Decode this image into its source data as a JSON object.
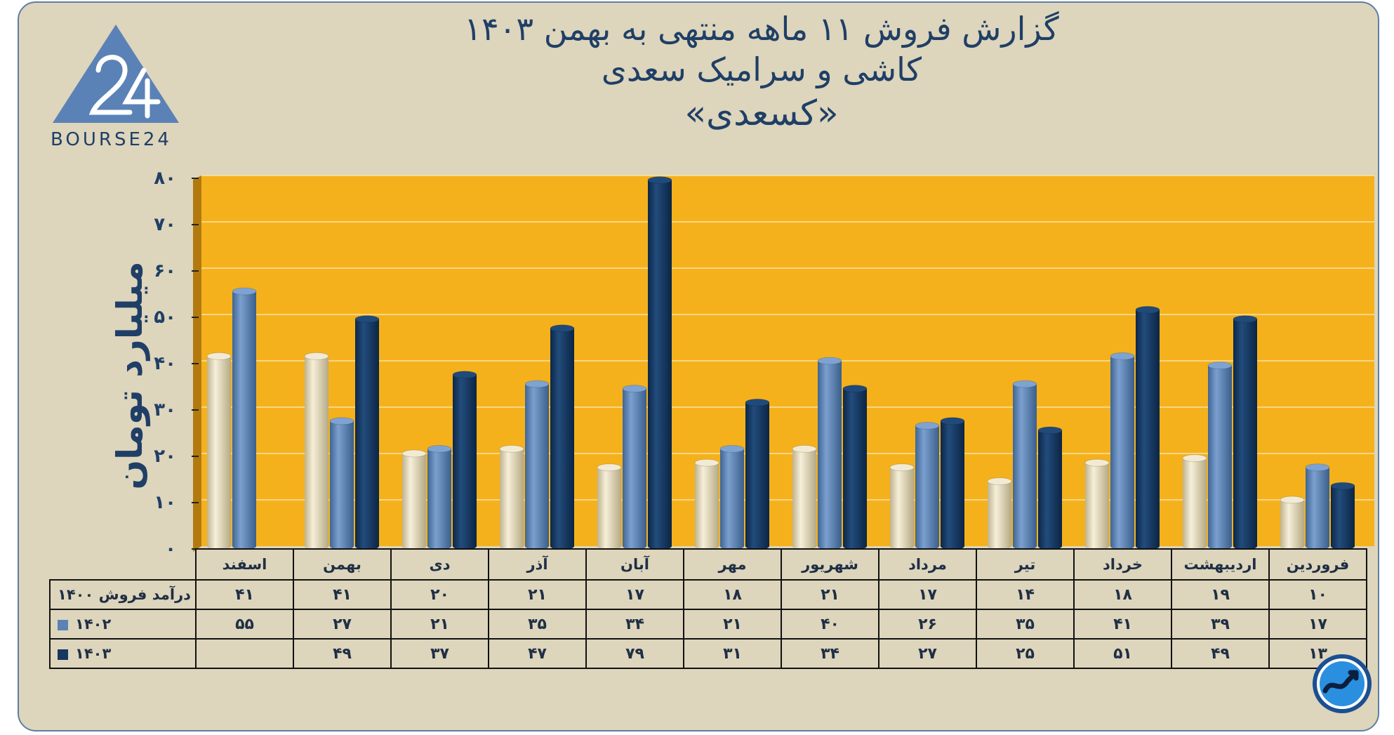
{
  "title": {
    "line1": "گزارش  فروش ۱۱ ماهه منتهی به بهمن ۱۴۰۳",
    "line2": "کاشی و سرامیک سعدی",
    "line3": "«کسعدی»"
  },
  "logo": {
    "brand_text": "BOURSE24",
    "mark": "24"
  },
  "colors": {
    "background": "#ddd5bc",
    "plot": "#f5b11c",
    "series_1400": "#ece0c0",
    "series_1402": "#5b82b6",
    "series_1403": "#16375f",
    "text": "#1f3f66"
  },
  "chart_data": {
    "type": "bar",
    "title": "گزارش  فروش ۱۱ ماهه منتهی به بهمن ۱۴۰۳",
    "ylabel": "میلیارد تومان",
    "xlabel": "",
    "ylim": [
      0,
      80
    ],
    "yticks": [
      0,
      10,
      20,
      30,
      40,
      50,
      60,
      70,
      80
    ],
    "ytick_labels": [
      "۰",
      "۱۰",
      "۲۰",
      "۳۰",
      "۴۰",
      "۵۰",
      "۶۰",
      "۷۰",
      "۸۰"
    ],
    "categories": [
      "فروردین",
      "اردیبهشت",
      "خرداد",
      "تیر",
      "مرداد",
      "شهریور",
      "مهر",
      "آبان",
      "آذر",
      "دی",
      "بهمن",
      "اسفند"
    ],
    "series": [
      {
        "name": "1400",
        "label": "درآمد فروش ۱۴۰۰",
        "color_key": "series_1400",
        "values": [
          10,
          19,
          18,
          14,
          17,
          21,
          18,
          17,
          21,
          20,
          41,
          41
        ],
        "labels": [
          "۱۰",
          "۱۹",
          "۱۸",
          "۱۴",
          "۱۷",
          "۲۱",
          "۱۸",
          "۱۷",
          "۲۱",
          "۲۰",
          "۴۱",
          "۴۱"
        ]
      },
      {
        "name": "1402",
        "label": "۱۴۰۲",
        "color_key": "series_1402",
        "values": [
          17,
          39,
          41,
          35,
          26,
          40,
          21,
          34,
          35,
          21,
          27,
          55
        ],
        "labels": [
          "۱۷",
          "۳۹",
          "۴۱",
          "۳۵",
          "۲۶",
          "۴۰",
          "۲۱",
          "۳۴",
          "۳۵",
          "۲۱",
          "۲۷",
          "۵۵"
        ]
      },
      {
        "name": "1403",
        "label": "۱۴۰۳",
        "color_key": "series_1403",
        "values": [
          13,
          49,
          51,
          25,
          27,
          34,
          31,
          79,
          47,
          37,
          49,
          null
        ],
        "labels": [
          "۱۳",
          "۴۹",
          "۵۱",
          "۲۵",
          "۲۷",
          "۳۴",
          "۳۱",
          "۷۹",
          "۴۷",
          "۳۷",
          "۴۹",
          ""
        ]
      }
    ],
    "legend": "table-below"
  }
}
